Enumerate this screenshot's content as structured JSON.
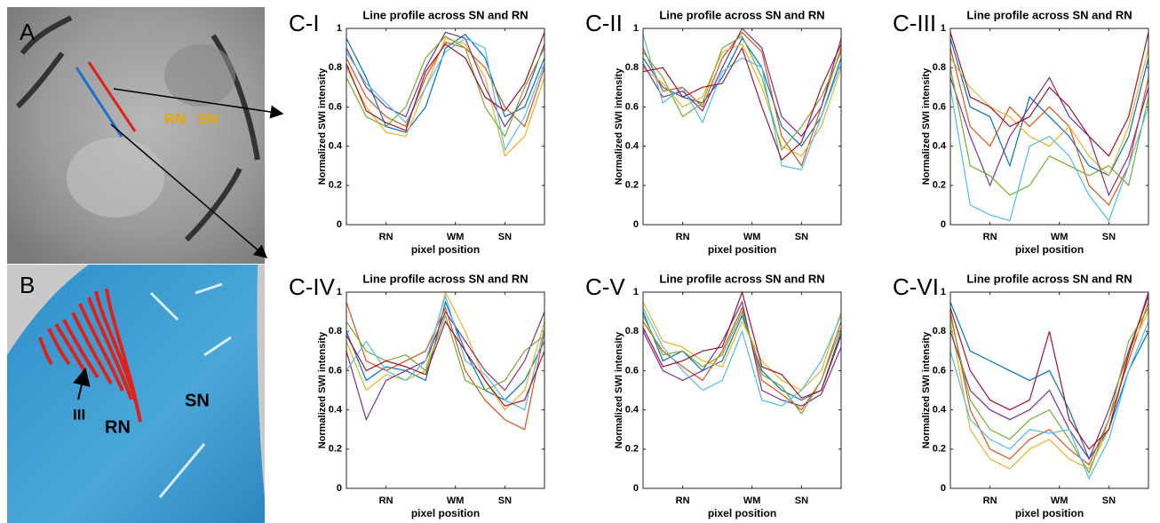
{
  "panel_a": {
    "label": "A",
    "annotations": [
      "RN",
      "SN"
    ]
  },
  "panel_b": {
    "label": "B",
    "annotations": [
      "III",
      "RN",
      "SN"
    ]
  },
  "chart_data": [
    {
      "type": "line",
      "panel_label": "C-I",
      "title": "Line profile across SN and RN",
      "xlabel": "pixel position",
      "ylabel": "Normalized SWI intensity",
      "x": [
        0,
        1,
        2,
        3,
        4,
        5,
        6,
        7,
        8,
        9,
        10
      ],
      "xlim": [
        0,
        10
      ],
      "xticks": [
        {
          "value": 2,
          "label": "RN"
        },
        {
          "value": 5.5,
          "label": "WM"
        },
        {
          "value": 8,
          "label": "SN"
        }
      ],
      "ylim": [
        0,
        1
      ],
      "yticks": [
        0,
        0.2,
        0.4,
        0.6,
        0.8,
        1
      ],
      "series": [
        {
          "color": "#0072BD",
          "values": [
            0.95,
            0.75,
            0.5,
            0.47,
            0.6,
            0.9,
            0.97,
            0.85,
            0.55,
            0.6,
            0.85
          ]
        },
        {
          "color": "#D95319",
          "values": [
            0.85,
            0.65,
            0.55,
            0.5,
            0.75,
            0.93,
            0.9,
            0.8,
            0.6,
            0.5,
            0.8
          ]
        },
        {
          "color": "#EDB120",
          "values": [
            0.8,
            0.6,
            0.47,
            0.45,
            0.7,
            0.95,
            0.92,
            0.75,
            0.35,
            0.45,
            0.75
          ]
        },
        {
          "color": "#7E2F8E",
          "values": [
            0.9,
            0.7,
            0.6,
            0.55,
            0.8,
            0.98,
            0.95,
            0.7,
            0.5,
            0.65,
            0.92
          ]
        },
        {
          "color": "#77AC30",
          "values": [
            0.75,
            0.55,
            0.5,
            0.6,
            0.85,
            0.96,
            0.9,
            0.6,
            0.45,
            0.7,
            0.9
          ]
        },
        {
          "color": "#4DBEEE",
          "values": [
            0.88,
            0.72,
            0.62,
            0.52,
            0.7,
            0.88,
            0.95,
            0.9,
            0.38,
            0.55,
            0.82
          ]
        },
        {
          "color": "#A2142F",
          "values": [
            0.82,
            0.58,
            0.52,
            0.48,
            0.78,
            0.92,
            0.85,
            0.65,
            0.58,
            0.72,
            0.98
          ]
        }
      ]
    },
    {
      "type": "line",
      "panel_label": "C-II",
      "title": "Line profile across SN and RN",
      "xlabel": "pixel position",
      "ylabel": "Normalized SWI intensity",
      "x": [
        0,
        1,
        2,
        3,
        4,
        5,
        6,
        7,
        8,
        9,
        10
      ],
      "xlim": [
        0,
        10
      ],
      "xticks": [
        {
          "value": 2,
          "label": "RN"
        },
        {
          "value": 5.5,
          "label": "WM"
        },
        {
          "value": 8,
          "label": "SN"
        }
      ],
      "ylim": [
        0,
        1
      ],
      "yticks": [
        0,
        0.2,
        0.4,
        0.6,
        0.8,
        1
      ],
      "series": [
        {
          "color": "#0072BD",
          "values": [
            0.85,
            0.7,
            0.65,
            0.62,
            0.75,
            0.95,
            0.8,
            0.5,
            0.4,
            0.55,
            0.85
          ]
        },
        {
          "color": "#D95319",
          "values": [
            0.9,
            0.68,
            0.7,
            0.6,
            0.85,
            0.98,
            0.88,
            0.45,
            0.3,
            0.6,
            0.9
          ]
        },
        {
          "color": "#EDB120",
          "values": [
            0.8,
            0.72,
            0.6,
            0.65,
            0.88,
            0.92,
            0.7,
            0.4,
            0.35,
            0.5,
            0.8
          ]
        },
        {
          "color": "#7E2F8E",
          "values": [
            0.82,
            0.65,
            0.68,
            0.58,
            0.8,
            1.0,
            0.9,
            0.55,
            0.45,
            0.6,
            0.95
          ]
        },
        {
          "color": "#77AC30",
          "values": [
            0.88,
            0.75,
            0.55,
            0.62,
            0.9,
            0.96,
            0.75,
            0.38,
            0.5,
            0.65,
            0.88
          ]
        },
        {
          "color": "#4DBEEE",
          "values": [
            0.97,
            0.62,
            0.7,
            0.52,
            0.78,
            0.85,
            0.8,
            0.3,
            0.28,
            0.55,
            0.82
          ]
        },
        {
          "color": "#A2142F",
          "values": [
            0.78,
            0.8,
            0.65,
            0.7,
            0.72,
            0.9,
            0.6,
            0.33,
            0.42,
            0.7,
            0.92
          ]
        }
      ]
    },
    {
      "type": "line",
      "panel_label": "C-III",
      "title": "Line profile across SN and RN",
      "xlabel": "pixel position",
      "ylabel": "Normalized SWI intensity",
      "x": [
        0,
        1,
        2,
        3,
        4,
        5,
        6,
        7,
        8,
        9,
        10
      ],
      "xlim": [
        0,
        10
      ],
      "xticks": [
        {
          "value": 2,
          "label": "RN"
        },
        {
          "value": 5.5,
          "label": "WM"
        },
        {
          "value": 8,
          "label": "SN"
        }
      ],
      "ylim": [
        0,
        1
      ],
      "yticks": [
        0,
        0.2,
        0.4,
        0.6,
        0.8,
        1
      ],
      "series": [
        {
          "color": "#0072BD",
          "values": [
            0.95,
            0.6,
            0.55,
            0.3,
            0.65,
            0.55,
            0.45,
            0.3,
            0.25,
            0.45,
            0.85
          ]
        },
        {
          "color": "#D95319",
          "values": [
            0.9,
            0.5,
            0.4,
            0.6,
            0.5,
            0.6,
            0.5,
            0.2,
            0.1,
            0.3,
            0.75
          ]
        },
        {
          "color": "#EDB120",
          "values": [
            0.85,
            0.7,
            0.6,
            0.55,
            0.45,
            0.4,
            0.5,
            0.35,
            0.25,
            0.5,
            0.9
          ]
        },
        {
          "color": "#7E2F8E",
          "values": [
            0.75,
            0.45,
            0.2,
            0.45,
            0.6,
            0.75,
            0.55,
            0.45,
            0.15,
            0.35,
            0.7
          ]
        },
        {
          "color": "#77AC30",
          "values": [
            0.8,
            0.3,
            0.25,
            0.15,
            0.2,
            0.35,
            0.3,
            0.25,
            0.3,
            0.2,
            0.65
          ]
        },
        {
          "color": "#4DBEEE",
          "values": [
            0.7,
            0.1,
            0.05,
            0.02,
            0.4,
            0.45,
            0.35,
            0.15,
            0.02,
            0.3,
            0.6
          ]
        },
        {
          "color": "#A2142F",
          "values": [
            0.98,
            0.65,
            0.6,
            0.5,
            0.55,
            0.7,
            0.6,
            0.45,
            0.35,
            0.55,
            0.98
          ]
        }
      ]
    },
    {
      "type": "line",
      "panel_label": "C-IV",
      "title": "Line profile across SN and RN",
      "xlabel": "pixel position",
      "ylabel": "Normalized SWI intensity",
      "x": [
        0,
        1,
        2,
        3,
        4,
        5,
        6,
        7,
        8,
        9,
        10
      ],
      "xlim": [
        0,
        10
      ],
      "xticks": [
        {
          "value": 2,
          "label": "RN"
        },
        {
          "value": 5.5,
          "label": "WM"
        },
        {
          "value": 8,
          "label": "SN"
        }
      ],
      "ylim": [
        0,
        1
      ],
      "yticks": [
        0,
        0.2,
        0.4,
        0.6,
        0.8,
        1
      ],
      "series": [
        {
          "color": "#0072BD",
          "values": [
            0.8,
            0.55,
            0.62,
            0.6,
            0.55,
            0.95,
            0.7,
            0.5,
            0.45,
            0.55,
            0.75
          ]
        },
        {
          "color": "#D95319",
          "values": [
            0.95,
            0.65,
            0.6,
            0.65,
            0.7,
            0.92,
            0.6,
            0.45,
            0.35,
            0.3,
            0.8
          ]
        },
        {
          "color": "#EDB120",
          "values": [
            0.75,
            0.5,
            0.58,
            0.55,
            0.6,
            1.0,
            0.8,
            0.55,
            0.4,
            0.5,
            0.85
          ]
        },
        {
          "color": "#7E2F8E",
          "values": [
            0.7,
            0.35,
            0.55,
            0.6,
            0.65,
            0.9,
            0.75,
            0.6,
            0.5,
            0.65,
            0.9
          ]
        },
        {
          "color": "#77AC30",
          "values": [
            0.85,
            0.7,
            0.65,
            0.68,
            0.6,
            0.88,
            0.55,
            0.5,
            0.55,
            0.7,
            0.78
          ]
        },
        {
          "color": "#4DBEEE",
          "values": [
            0.6,
            0.75,
            0.6,
            0.55,
            0.65,
            0.98,
            0.65,
            0.58,
            0.45,
            0.4,
            0.82
          ]
        },
        {
          "color": "#A2142F",
          "values": [
            0.78,
            0.6,
            0.65,
            0.62,
            0.58,
            0.85,
            0.7,
            0.55,
            0.42,
            0.45,
            0.7
          ]
        }
      ]
    },
    {
      "type": "line",
      "panel_label": "C-V",
      "title": "Line profile across SN and RN",
      "xlabel": "pixel position",
      "ylabel": "Normalized SWI intensity",
      "x": [
        0,
        1,
        2,
        3,
        4,
        5,
        6,
        7,
        8,
        9,
        10
      ],
      "xlim": [
        0,
        10
      ],
      "xticks": [
        {
          "value": 2,
          "label": "RN"
        },
        {
          "value": 5.5,
          "label": "WM"
        },
        {
          "value": 8,
          "label": "SN"
        }
      ],
      "ylim": [
        0,
        1
      ],
      "yticks": [
        0,
        0.2,
        0.4,
        0.6,
        0.8,
        1
      ],
      "series": [
        {
          "color": "#0072BD",
          "values": [
            0.9,
            0.65,
            0.7,
            0.6,
            0.65,
            0.88,
            0.6,
            0.5,
            0.45,
            0.5,
            0.8
          ]
        },
        {
          "color": "#D95319",
          "values": [
            0.85,
            0.7,
            0.62,
            0.55,
            0.7,
            0.92,
            0.55,
            0.48,
            0.4,
            0.55,
            0.85
          ]
        },
        {
          "color": "#EDB120",
          "values": [
            0.95,
            0.75,
            0.72,
            0.65,
            0.62,
            0.85,
            0.65,
            0.55,
            0.5,
            0.6,
            0.9
          ]
        },
        {
          "color": "#7E2F8E",
          "values": [
            0.8,
            0.6,
            0.55,
            0.6,
            0.75,
            0.95,
            0.5,
            0.45,
            0.42,
            0.48,
            0.72
          ]
        },
        {
          "color": "#77AC30",
          "values": [
            0.88,
            0.68,
            0.7,
            0.62,
            0.68,
            0.9,
            0.58,
            0.52,
            0.38,
            0.55,
            0.82
          ]
        },
        {
          "color": "#4DBEEE",
          "values": [
            0.92,
            0.72,
            0.6,
            0.5,
            0.55,
            0.8,
            0.45,
            0.42,
            0.5,
            0.65,
            0.88
          ]
        },
        {
          "color": "#A2142F",
          "values": [
            0.82,
            0.62,
            0.65,
            0.7,
            0.72,
            1.0,
            0.62,
            0.58,
            0.46,
            0.5,
            0.78
          ]
        }
      ]
    },
    {
      "type": "line",
      "panel_label": "C-VI",
      "title": "Line profile across SN and RN",
      "xlabel": "pixel position",
      "ylabel": "Normalized SWI intensity",
      "x": [
        0,
        1,
        2,
        3,
        4,
        5,
        6,
        7,
        8,
        9,
        10
      ],
      "xlim": [
        0,
        10
      ],
      "xticks": [
        {
          "value": 2,
          "label": "RN"
        },
        {
          "value": 5.5,
          "label": "WM"
        },
        {
          "value": 8,
          "label": "SN"
        }
      ],
      "ylim": [
        0,
        1
      ],
      "yticks": [
        0,
        0.2,
        0.4,
        0.6,
        0.8,
        1
      ],
      "series": [
        {
          "color": "#0072BD",
          "values": [
            0.95,
            0.7,
            0.65,
            0.6,
            0.55,
            0.6,
            0.4,
            0.15,
            0.3,
            0.6,
            0.8
          ]
        },
        {
          "color": "#D95319",
          "values": [
            0.9,
            0.4,
            0.2,
            0.15,
            0.25,
            0.3,
            0.2,
            0.12,
            0.35,
            0.65,
            0.95
          ]
        },
        {
          "color": "#EDB120",
          "values": [
            0.85,
            0.3,
            0.15,
            0.1,
            0.2,
            0.25,
            0.15,
            0.1,
            0.3,
            0.7,
            0.9
          ]
        },
        {
          "color": "#7E2F8E",
          "values": [
            0.8,
            0.5,
            0.4,
            0.35,
            0.4,
            0.5,
            0.3,
            0.15,
            0.4,
            0.7,
            0.98
          ]
        },
        {
          "color": "#77AC30",
          "values": [
            0.88,
            0.45,
            0.3,
            0.25,
            0.35,
            0.4,
            0.25,
            0.08,
            0.35,
            0.75,
            0.92
          ]
        },
        {
          "color": "#4DBEEE",
          "values": [
            0.7,
            0.35,
            0.25,
            0.2,
            0.3,
            0.28,
            0.3,
            0.05,
            0.25,
            0.6,
            0.85
          ]
        },
        {
          "color": "#A2142F",
          "values": [
            0.92,
            0.6,
            0.45,
            0.4,
            0.45,
            0.8,
            0.35,
            0.2,
            0.3,
            0.68,
            1.0
          ]
        }
      ]
    }
  ]
}
